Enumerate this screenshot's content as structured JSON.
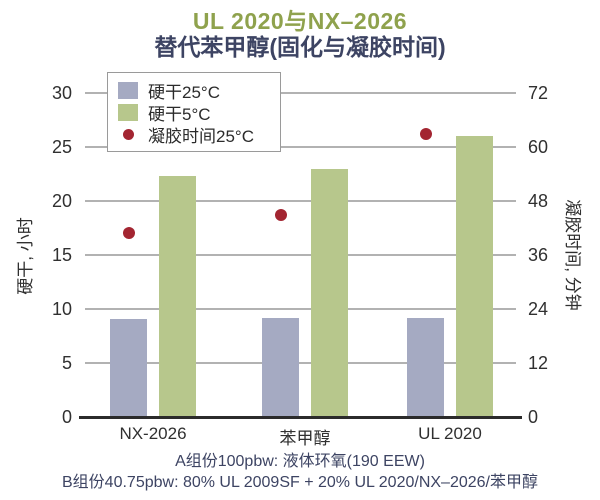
{
  "title": {
    "line1": "UL 2020与NX–2026",
    "line2": "替代苯甲醇(固化与凝胶时间)"
  },
  "footer": {
    "line1": "A组份100pbw: 液体环氧(190 EEW)",
    "line2": "B组份40.75pbw: 80% UL 2009SF + 20% UL 2020/NX–2026/苯甲醇"
  },
  "colors": {
    "title_olive": "#8fa24d",
    "navy_text": "#3d4463",
    "bar_gray": "#a5aac2",
    "bar_green": "#b7c78c",
    "dot_red": "#a32531",
    "grid": "#b2b2b2",
    "axis_line": "#2b2b2b",
    "tick_text": "#303030",
    "legend_border": "#9a9a9a"
  },
  "chart_data": {
    "type": "bar",
    "subtype": "grouped bars on left axis + scatter points on right axis",
    "categories": [
      "NX-2026",
      "苯甲醇",
      "UL 2020"
    ],
    "series": [
      {
        "name": "硬干25°C",
        "type": "bar",
        "axis": "left",
        "color_key": "bar_gray",
        "values": [
          9.1,
          9.2,
          9.2
        ]
      },
      {
        "name": "硬干5°C",
        "type": "bar",
        "axis": "left",
        "color_key": "bar_green",
        "values": [
          22.3,
          23,
          26
        ]
      },
      {
        "name": "凝胶时间25°C",
        "type": "point",
        "axis": "right",
        "color_key": "dot_red",
        "values": [
          41,
          45,
          63
        ]
      }
    ],
    "left_axis": {
      "label": "硬干, 小时",
      "min": 0,
      "max": 30,
      "step": 5,
      "ticks": [
        0,
        5,
        10,
        15,
        20,
        25,
        30
      ]
    },
    "right_axis": {
      "label": "凝胶时间, 分钟",
      "min": 0,
      "max": 72,
      "step": 12,
      "ticks": [
        0,
        12,
        24,
        36,
        48,
        60,
        72
      ]
    },
    "grid": true,
    "legend_position": "top-left"
  }
}
